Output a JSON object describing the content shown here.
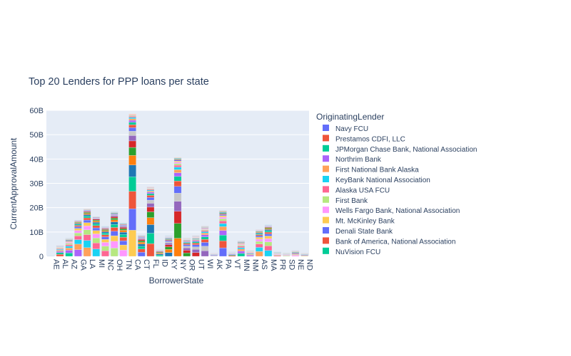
{
  "chart_data": {
    "type": "bar",
    "barmode": "stack",
    "title": "Top 20 Lenders for PPP loans per state",
    "xlabel": "BorrowerState",
    "ylabel": "CurrentApprovalAmount",
    "ylim": [
      0,
      60000000000
    ],
    "yticks": [
      0,
      10000000000,
      20000000000,
      30000000000,
      40000000000,
      50000000000,
      60000000000
    ],
    "ytick_labels": [
      "0",
      "10B",
      "20B",
      "30B",
      "40B",
      "50B",
      "60B"
    ],
    "grid": true,
    "legend_title": "OriginatingLender",
    "legend_position": "right",
    "categories": [
      "AE",
      "AL",
      "AZ",
      "GA",
      "LA",
      "MI",
      "NC",
      "OH",
      "TN",
      "CA",
      "CT",
      "FL",
      "ID",
      "KY",
      "NY",
      "OR",
      "UT",
      "WI",
      "AK",
      "PA",
      "VT",
      "MN",
      "NM",
      "AS",
      "MA",
      "PR",
      "SD",
      "NE",
      "ND"
    ],
    "labeled_categories": [
      "AE",
      "AL",
      "AZ",
      "GA",
      "LA",
      "MI",
      "NC",
      "OH",
      "TN",
      "CA",
      "CT",
      "FL",
      "ID",
      "KY",
      "NY",
      "OR",
      "UT",
      "WI",
      "AK",
      "PA",
      "VT",
      "MN",
      "NM",
      "AS",
      "MA",
      "PR",
      "SD",
      "NE",
      "ND"
    ],
    "totals": [
      0.3,
      4.5,
      7.5,
      15.0,
      19.5,
      16.5,
      12.5,
      18.5,
      14.0,
      58.5,
      9.0,
      28.5,
      3.0,
      8.5,
      40.5,
      7.5,
      8.5,
      12.5,
      1.5,
      19.0,
      2.0,
      6.5,
      2.5,
      11.0,
      13.0,
      2.0,
      1.5,
      2.5,
      1.5
    ],
    "totals_unit": "billions",
    "series": [
      {
        "name": "Navy FCU",
        "color": "#636efa"
      },
      {
        "name": "Prestamos CDFI, LLC",
        "color": "#EF553B"
      },
      {
        "name": "JPMorgan Chase Bank, National Association",
        "color": "#00cc96"
      },
      {
        "name": "Northrim Bank",
        "color": "#ab63fa"
      },
      {
        "name": "First National Bank Alaska",
        "color": "#FFA15A"
      },
      {
        "name": "KeyBank National Association",
        "color": "#19d3f3"
      },
      {
        "name": "Alaska USA FCU",
        "color": "#FF6692"
      },
      {
        "name": "First Bank",
        "color": "#B6E880"
      },
      {
        "name": "Wells Fargo Bank, National Association",
        "color": "#FF97FF"
      },
      {
        "name": "Mt. McKinley Bank",
        "color": "#FECB52"
      },
      {
        "name": "Denali State Bank",
        "color": "#636efa"
      },
      {
        "name": "Bank of America, National Association",
        "color": "#EF553B"
      },
      {
        "name": "NuVision FCU",
        "color": "#00cc96"
      }
    ]
  }
}
